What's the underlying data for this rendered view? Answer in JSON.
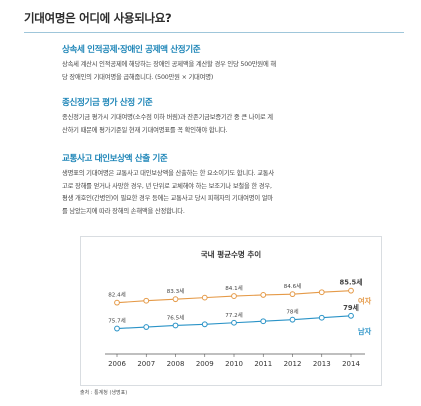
{
  "header": {
    "title": "기대여명은 어디에 사용되나요?"
  },
  "sections": [
    {
      "heading": "상속세 인적공제·장애인 공제액 산정기준",
      "lines": [
        "상속세 계산시 인적공제에 해당하는 장애인 공제액을 계산할 경우 인당 500만원에 해",
        "당 장애인의 기대여명을 곱해줍니다. (500만원 × 기대여명)"
      ]
    },
    {
      "heading": "종신정기금 평가 산정 기준",
      "lines": [
        "종신정기금 평가시 기대여명(소수점 이하 버림)과 잔존기금보증기간 중 큰 나이로 계",
        "산하기 때문에 평가기준일 현재 기대여명표를 꼭 확인해야 합니다."
      ]
    },
    {
      "heading": "교통사고 대인보상액 산출 기준",
      "lines": [
        "생명표의 기대여명은 교통사고 대인보상액을 산출하는 한 요소이기도 합니다. 교통사",
        "고로 장해를 얻거나 사망한 경우, 년 단위로 교체해야 하는 보조기나 보철을 한 경우,",
        "평생 개호인(간병인)이 필요한 경우 등에는 교통사고 당시 피해자의 기대여명이 얼마",
        "를 남았는지에 따라 장해의 손해액을 산정합니다."
      ]
    }
  ],
  "chart_data": {
    "type": "line",
    "title": "국내 평균수명 추이",
    "categories": [
      "2006",
      "2007",
      "2008",
      "2009",
      "2010",
      "2011",
      "2012",
      "2013",
      "2014"
    ],
    "ylim": [
      73,
      88
    ],
    "grid": false,
    "series": [
      {
        "name": "여자",
        "color": "#e59a48",
        "values": [
          82.4,
          82.9,
          83.3,
          83.7,
          84.1,
          84.4,
          84.6,
          85.1,
          85.5
        ],
        "labels": [
          "82.4세",
          "",
          "83.3세",
          "",
          "84.1세",
          "",
          "84.6세",
          "",
          "85.5세"
        ]
      },
      {
        "name": "남자",
        "color": "#2a93c7",
        "values": [
          75.7,
          76.1,
          76.5,
          76.8,
          77.2,
          77.6,
          78.0,
          78.5,
          79.0
        ],
        "labels": [
          "75.7세",
          "",
          "76.5세",
          "",
          "77.2세",
          "",
          "78세",
          "",
          "79세"
        ]
      }
    ]
  },
  "source": "출처 : 통계청 (생명표)"
}
